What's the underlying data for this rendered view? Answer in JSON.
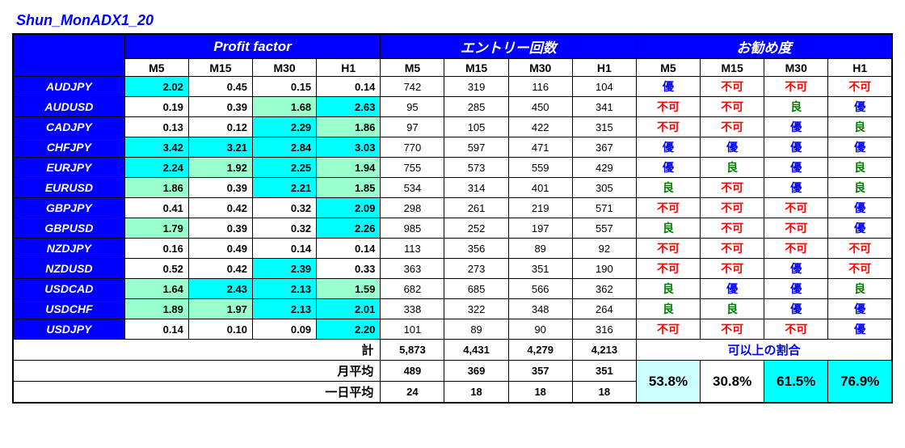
{
  "title": "Shun_MonADX1_20",
  "headers": {
    "section1": "Profit factor",
    "section2": "エントリー回数",
    "section3": "お勧め度",
    "timeframes": [
      "M5",
      "M15",
      "M30",
      "H1"
    ]
  },
  "colors": {
    "cyan": "#00ffff",
    "lightteal": "#99ffcc",
    "lightcyan": "#ccffff",
    "white": "#ffffff",
    "red": "#ff0000",
    "green": "#008000",
    "blue": "#0000ff"
  },
  "rows": [
    {
      "pair": "AUDJPY",
      "pf": [
        {
          "v": "2.02",
          "bg": "cyan"
        },
        {
          "v": "0.45",
          "bg": "white"
        },
        {
          "v": "0.15",
          "bg": "white"
        },
        {
          "v": "0.14",
          "bg": "white"
        }
      ],
      "entries": [
        "742",
        "319",
        "116",
        "104"
      ],
      "rec": [
        {
          "t": "優",
          "c": "blue"
        },
        {
          "t": "不可",
          "c": "red"
        },
        {
          "t": "不可",
          "c": "red"
        },
        {
          "t": "不可",
          "c": "red"
        }
      ]
    },
    {
      "pair": "AUDUSD",
      "pf": [
        {
          "v": "0.19",
          "bg": "white"
        },
        {
          "v": "0.39",
          "bg": "white"
        },
        {
          "v": "1.68",
          "bg": "lightteal"
        },
        {
          "v": "2.63",
          "bg": "cyan"
        }
      ],
      "entries": [
        "95",
        "285",
        "450",
        "341"
      ],
      "rec": [
        {
          "t": "不可",
          "c": "red"
        },
        {
          "t": "不可",
          "c": "red"
        },
        {
          "t": "良",
          "c": "green"
        },
        {
          "t": "優",
          "c": "blue"
        }
      ]
    },
    {
      "pair": "CADJPY",
      "pf": [
        {
          "v": "0.13",
          "bg": "white"
        },
        {
          "v": "0.12",
          "bg": "white"
        },
        {
          "v": "2.29",
          "bg": "cyan"
        },
        {
          "v": "1.86",
          "bg": "lightteal"
        }
      ],
      "entries": [
        "97",
        "105",
        "422",
        "315"
      ],
      "rec": [
        {
          "t": "不可",
          "c": "red"
        },
        {
          "t": "不可",
          "c": "red"
        },
        {
          "t": "優",
          "c": "blue"
        },
        {
          "t": "良",
          "c": "green"
        }
      ]
    },
    {
      "pair": "CHFJPY",
      "pf": [
        {
          "v": "3.42",
          "bg": "cyan"
        },
        {
          "v": "3.21",
          "bg": "cyan"
        },
        {
          "v": "2.84",
          "bg": "cyan"
        },
        {
          "v": "3.03",
          "bg": "cyan"
        }
      ],
      "entries": [
        "770",
        "597",
        "471",
        "367"
      ],
      "rec": [
        {
          "t": "優",
          "c": "blue"
        },
        {
          "t": "優",
          "c": "blue"
        },
        {
          "t": "優",
          "c": "blue"
        },
        {
          "t": "優",
          "c": "blue"
        }
      ]
    },
    {
      "pair": "EURJPY",
      "pf": [
        {
          "v": "2.24",
          "bg": "cyan"
        },
        {
          "v": "1.92",
          "bg": "lightteal"
        },
        {
          "v": "2.25",
          "bg": "cyan"
        },
        {
          "v": "1.94",
          "bg": "lightteal"
        }
      ],
      "entries": [
        "755",
        "573",
        "559",
        "429"
      ],
      "rec": [
        {
          "t": "優",
          "c": "blue"
        },
        {
          "t": "良",
          "c": "green"
        },
        {
          "t": "優",
          "c": "blue"
        },
        {
          "t": "良",
          "c": "green"
        }
      ]
    },
    {
      "pair": "EURUSD",
      "pf": [
        {
          "v": "1.86",
          "bg": "lightteal"
        },
        {
          "v": "0.39",
          "bg": "white"
        },
        {
          "v": "2.21",
          "bg": "cyan"
        },
        {
          "v": "1.85",
          "bg": "lightteal"
        }
      ],
      "entries": [
        "534",
        "314",
        "401",
        "305"
      ],
      "rec": [
        {
          "t": "良",
          "c": "green"
        },
        {
          "t": "不可",
          "c": "red"
        },
        {
          "t": "優",
          "c": "blue"
        },
        {
          "t": "良",
          "c": "green"
        }
      ]
    },
    {
      "pair": "GBPJPY",
      "pf": [
        {
          "v": "0.41",
          "bg": "white"
        },
        {
          "v": "0.42",
          "bg": "white"
        },
        {
          "v": "0.32",
          "bg": "white"
        },
        {
          "v": "2.09",
          "bg": "cyan"
        }
      ],
      "entries": [
        "298",
        "261",
        "219",
        "571"
      ],
      "rec": [
        {
          "t": "不可",
          "c": "red"
        },
        {
          "t": "不可",
          "c": "red"
        },
        {
          "t": "不可",
          "c": "red"
        },
        {
          "t": "優",
          "c": "blue"
        }
      ]
    },
    {
      "pair": "GBPUSD",
      "pf": [
        {
          "v": "1.79",
          "bg": "lightteal"
        },
        {
          "v": "0.39",
          "bg": "white"
        },
        {
          "v": "0.32",
          "bg": "white"
        },
        {
          "v": "2.26",
          "bg": "cyan"
        }
      ],
      "entries": [
        "985",
        "252",
        "197",
        "557"
      ],
      "rec": [
        {
          "t": "良",
          "c": "green"
        },
        {
          "t": "不可",
          "c": "red"
        },
        {
          "t": "不可",
          "c": "red"
        },
        {
          "t": "優",
          "c": "blue"
        }
      ]
    },
    {
      "pair": "NZDJPY",
      "pf": [
        {
          "v": "0.16",
          "bg": "white"
        },
        {
          "v": "0.49",
          "bg": "white"
        },
        {
          "v": "0.14",
          "bg": "white"
        },
        {
          "v": "0.14",
          "bg": "white"
        }
      ],
      "entries": [
        "113",
        "356",
        "89",
        "92"
      ],
      "rec": [
        {
          "t": "不可",
          "c": "red"
        },
        {
          "t": "不可",
          "c": "red"
        },
        {
          "t": "不可",
          "c": "red"
        },
        {
          "t": "不可",
          "c": "red"
        }
      ]
    },
    {
      "pair": "NZDUSD",
      "pf": [
        {
          "v": "0.52",
          "bg": "white"
        },
        {
          "v": "0.42",
          "bg": "white"
        },
        {
          "v": "2.39",
          "bg": "cyan"
        },
        {
          "v": "0.33",
          "bg": "white"
        }
      ],
      "entries": [
        "363",
        "273",
        "351",
        "190"
      ],
      "rec": [
        {
          "t": "不可",
          "c": "red"
        },
        {
          "t": "不可",
          "c": "red"
        },
        {
          "t": "優",
          "c": "blue"
        },
        {
          "t": "不可",
          "c": "red"
        }
      ]
    },
    {
      "pair": "USDCAD",
      "pf": [
        {
          "v": "1.64",
          "bg": "lightteal"
        },
        {
          "v": "2.43",
          "bg": "cyan"
        },
        {
          "v": "2.13",
          "bg": "cyan"
        },
        {
          "v": "1.59",
          "bg": "lightteal"
        }
      ],
      "entries": [
        "682",
        "685",
        "566",
        "362"
      ],
      "rec": [
        {
          "t": "良",
          "c": "green"
        },
        {
          "t": "優",
          "c": "blue"
        },
        {
          "t": "優",
          "c": "blue"
        },
        {
          "t": "良",
          "c": "green"
        }
      ]
    },
    {
      "pair": "USDCHF",
      "pf": [
        {
          "v": "1.89",
          "bg": "lightteal"
        },
        {
          "v": "1.97",
          "bg": "lightteal"
        },
        {
          "v": "2.13",
          "bg": "cyan"
        },
        {
          "v": "2.01",
          "bg": "cyan"
        }
      ],
      "entries": [
        "338",
        "322",
        "348",
        "264"
      ],
      "rec": [
        {
          "t": "良",
          "c": "green"
        },
        {
          "t": "良",
          "c": "green"
        },
        {
          "t": "優",
          "c": "blue"
        },
        {
          "t": "優",
          "c": "blue"
        }
      ]
    },
    {
      "pair": "USDJPY",
      "pf": [
        {
          "v": "0.14",
          "bg": "white"
        },
        {
          "v": "0.10",
          "bg": "white"
        },
        {
          "v": "0.09",
          "bg": "white"
        },
        {
          "v": "2.20",
          "bg": "cyan"
        }
      ],
      "entries": [
        "101",
        "89",
        "90",
        "316"
      ],
      "rec": [
        {
          "t": "不可",
          "c": "red"
        },
        {
          "t": "不可",
          "c": "red"
        },
        {
          "t": "不可",
          "c": "red"
        },
        {
          "t": "優",
          "c": "blue"
        }
      ]
    }
  ],
  "summary": {
    "total_label": "計",
    "total": [
      "5,873",
      "4,431",
      "4,279",
      "4,213"
    ],
    "month_label": "月平均",
    "month": [
      "489",
      "369",
      "357",
      "351"
    ],
    "day_label": "一日平均",
    "day": [
      "24",
      "18",
      "18",
      "18"
    ],
    "ratio_label": "可以上の割合",
    "ratio": [
      {
        "v": "53.8%",
        "bg": "lightcyan"
      },
      {
        "v": "30.8%",
        "bg": "white"
      },
      {
        "v": "61.5%",
        "bg": "cyan"
      },
      {
        "v": "76.9%",
        "bg": "cyan"
      }
    ]
  }
}
